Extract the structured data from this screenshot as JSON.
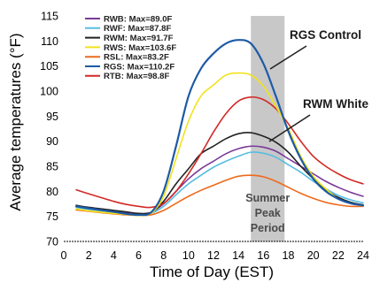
{
  "chart_data": {
    "type": "line",
    "xlabel": "Time of Day (EST)",
    "ylabel": "Average temperatures (°F)",
    "xlim": [
      0,
      24
    ],
    "ylim": [
      70,
      115
    ],
    "x_ticks": [
      0,
      2,
      4,
      6,
      8,
      10,
      12,
      14,
      16,
      18,
      20,
      22,
      24
    ],
    "y_ticks": [
      70,
      75,
      80,
      85,
      90,
      95,
      100,
      105,
      110,
      115
    ],
    "grid": false,
    "legend_position": "top-left",
    "shaded_band": {
      "x_start": 15,
      "x_end": 17.7,
      "color": "#c8c8c8",
      "label_lines": [
        "Summer",
        "Peak",
        "Period"
      ]
    },
    "annotations": [
      {
        "text": "RGS Control",
        "target_series": "RGS"
      },
      {
        "text": "RWM White",
        "target_series": "RWM"
      }
    ],
    "series": [
      {
        "name": "RWB: Max=89.0F",
        "color": "#7a3a9a",
        "x": [
          1,
          2,
          4,
          5,
          6,
          7,
          8,
          9,
          10,
          11,
          12,
          13,
          14,
          15,
          16,
          17,
          18,
          19,
          20,
          21,
          22,
          23,
          24
        ],
        "y": [
          77,
          76.6,
          76,
          75.7,
          75.5,
          75.8,
          77.5,
          80,
          82.5,
          84.5,
          86,
          87.5,
          88.5,
          89,
          88.8,
          88,
          86.5,
          85,
          83.5,
          82,
          80.8,
          79.8,
          79
        ]
      },
      {
        "name": "RWF: Max=87.8F",
        "color": "#55bde0",
        "x": [
          1,
          2,
          4,
          5,
          6,
          7,
          8,
          9,
          10,
          11,
          12,
          13,
          14,
          15,
          16,
          17,
          18,
          19,
          20,
          21,
          22,
          23,
          24
        ],
        "y": [
          76.8,
          76.4,
          75.8,
          75.5,
          75.3,
          75.6,
          77,
          79.3,
          81.5,
          83.2,
          84.8,
          86,
          87,
          87.8,
          87.6,
          86.8,
          85.3,
          83.8,
          82,
          80.5,
          79.2,
          78.3,
          77.7
        ]
      },
      {
        "name": "RWM: Max=91.7F",
        "color": "#222222",
        "x": [
          1,
          2,
          4,
          5,
          6,
          7,
          8,
          9,
          10,
          11,
          12,
          13,
          14,
          15,
          16,
          17,
          18,
          19,
          20,
          21,
          22,
          23,
          24
        ],
        "y": [
          77.2,
          76.8,
          76.2,
          75.9,
          75.6,
          75.8,
          78,
          81.5,
          84.5,
          87.5,
          89,
          90.5,
          91.5,
          91.7,
          91,
          89.8,
          87.8,
          85,
          82.5,
          80.3,
          78.8,
          77.8,
          77.3
        ]
      },
      {
        "name": "RWS: Max=103.6F",
        "color": "#f2e21a",
        "x": [
          1,
          2,
          4,
          5,
          6,
          7,
          8,
          9,
          10,
          11,
          12,
          13,
          14,
          15,
          16,
          17,
          18,
          19,
          20,
          21,
          22,
          23,
          24
        ],
        "y": [
          76.5,
          76.1,
          75.6,
          75.4,
          75.2,
          75.6,
          79,
          86.5,
          94,
          99,
          101.2,
          103.2,
          103.6,
          103.2,
          101,
          97,
          92.5,
          87,
          83,
          80.5,
          78.5,
          77.6,
          77.2
        ]
      },
      {
        "name": "RSL: Max=83.2F",
        "color": "#ee6a1c",
        "x": [
          1,
          2,
          4,
          5,
          6,
          7,
          8,
          9,
          10,
          11,
          12,
          13,
          14,
          15,
          16,
          17,
          18,
          19,
          20,
          21,
          22,
          23,
          24
        ],
        "y": [
          76.3,
          76,
          75.5,
          75.3,
          75.2,
          75.3,
          76.2,
          77.6,
          79,
          80.2,
          81.2,
          82.2,
          83,
          83.2,
          82.9,
          82,
          80.8,
          79.6,
          78.6,
          77.8,
          77.3,
          77,
          77
        ]
      },
      {
        "name": "RGS: Max=110.2F",
        "color": "#1d5aa6",
        "x": [
          1,
          2,
          4,
          5,
          6,
          7,
          8,
          9,
          10,
          11,
          12,
          13,
          14,
          15,
          16,
          17,
          18,
          19,
          20,
          21,
          22,
          23,
          24
        ],
        "y": [
          77,
          76.6,
          75.9,
          75.5,
          75.3,
          75.8,
          80,
          89,
          99,
          104.5,
          107.5,
          109.5,
          110.2,
          109.5,
          105.5,
          99,
          92,
          86.5,
          82.5,
          80,
          78.5,
          77.6,
          77.2
        ]
      },
      {
        "name": "RTB: Max=98.8F",
        "color": "#d12a25",
        "x": [
          1,
          2,
          4,
          5,
          6,
          7,
          8,
          9,
          10,
          11,
          12,
          13,
          14,
          15,
          16,
          17,
          18,
          19,
          20,
          21,
          22,
          23,
          24
        ],
        "y": [
          80.3,
          79.5,
          78,
          77.4,
          77,
          76.8,
          77.6,
          80,
          83.5,
          87.5,
          91.8,
          95.5,
          98,
          98.8,
          98.3,
          96.5,
          93.5,
          90,
          87,
          85,
          83.5,
          82.3,
          81.5
        ]
      }
    ]
  }
}
